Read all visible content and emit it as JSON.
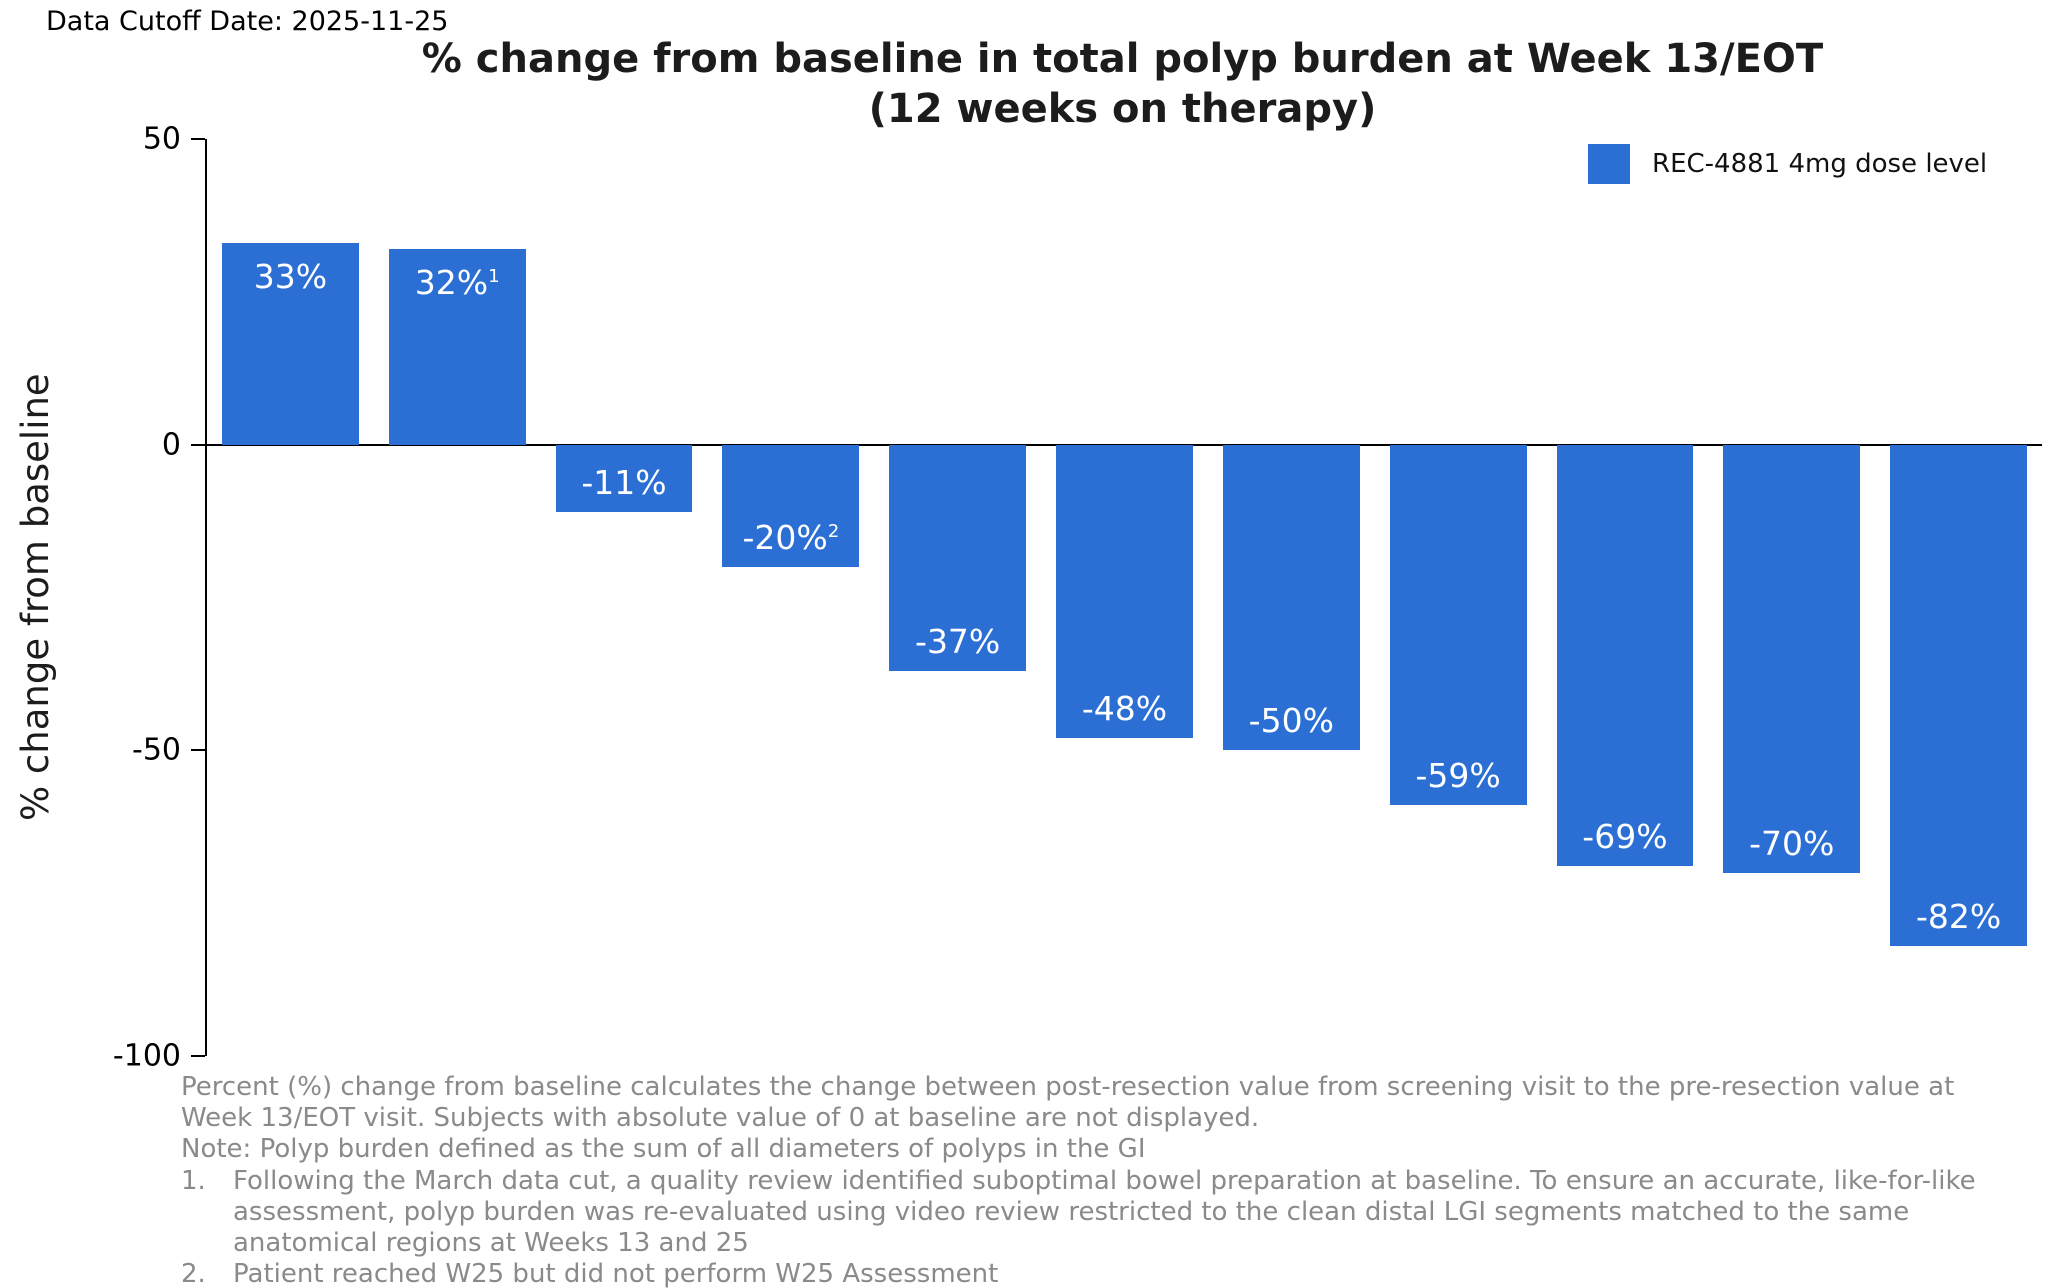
{
  "header": {
    "data_cutoff": "Data Cutoff Date: 2025-11-25"
  },
  "chart_data": {
    "type": "bar",
    "title_line1": "% change from baseline in total polyp burden at Week 13/EOT",
    "title_line2": "(12 weeks on therapy)",
    "ylabel": "% change from baseline",
    "ylim": [
      -100,
      50
    ],
    "yticks": [
      50,
      0,
      -50,
      -100
    ],
    "grid": false,
    "legend_position": "top-right",
    "legend": [
      {
        "label": "REC-4881 4mg dose level",
        "color": "#2b6fd4"
      }
    ],
    "bars": [
      {
        "value": 33,
        "label": "33%",
        "sup": ""
      },
      {
        "value": 32,
        "label": "32%",
        "sup": "1"
      },
      {
        "value": -11,
        "label": "-11%",
        "sup": ""
      },
      {
        "value": -20,
        "label": "-20%",
        "sup": "2"
      },
      {
        "value": -37,
        "label": "-37%",
        "sup": ""
      },
      {
        "value": -48,
        "label": "-48%",
        "sup": ""
      },
      {
        "value": -50,
        "label": "-50%",
        "sup": ""
      },
      {
        "value": -59,
        "label": "-59%",
        "sup": ""
      },
      {
        "value": -69,
        "label": "-69%",
        "sup": ""
      },
      {
        "value": -70,
        "label": "-70%",
        "sup": ""
      },
      {
        "value": -82,
        "label": "-82%",
        "sup": ""
      }
    ]
  },
  "footnotes": {
    "body": "Percent (%) change from baseline calculates the change between post-resection value from screening visit to the pre-resection value at Week 13/EOT visit. Subjects with absolute value of 0 at baseline are not displayed.",
    "note": "Note: Polyp burden defined as the sum of all diameters of polyps in the GI",
    "items": [
      {
        "num": "1.",
        "text": "Following the March data cut, a quality review identified suboptimal bowel preparation at baseline. To ensure an accurate, like-for-like assessment, polyp burden was re-evaluated using video review restricted to the clean distal LGI segments matched to the same anatomical regions at Weeks 13 and 25"
      },
      {
        "num": "2.",
        "text": "Patient reached W25 but did not perform W25 Assessment"
      }
    ]
  }
}
